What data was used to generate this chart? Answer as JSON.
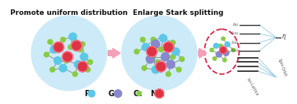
{
  "title1": "Promote uniform distribution",
  "title2": "Enlarge Stark splitting",
  "legend_labels": [
    "P:",
    "Ge:",
    "O:",
    "Nd:"
  ],
  "p_color": "#5bc8e8",
  "ge_color": "#8888cc",
  "o_color": "#88cc44",
  "nd_color": "#dd3344",
  "circle1_color": "#cdeaf8",
  "circle2_color": "#cdeaf8",
  "arrow_color": "#f4a0b8",
  "dashed_ellipse_color": "#dd2244",
  "energy_line_color": "#333333",
  "figsize": [
    3.78,
    1.33
  ],
  "dpi": 100
}
